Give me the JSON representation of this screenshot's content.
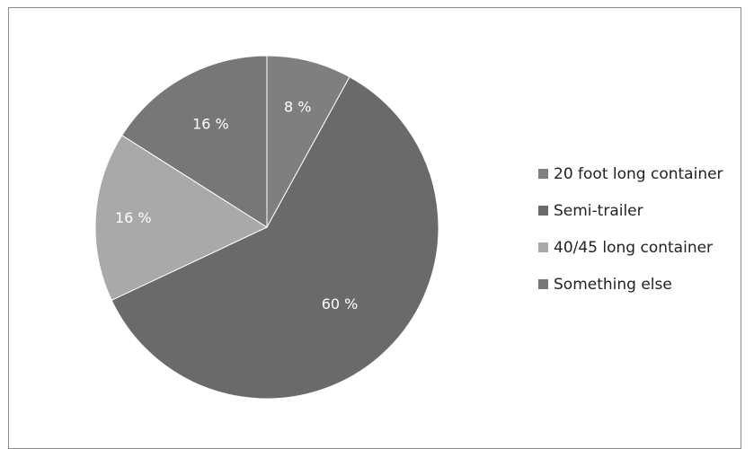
{
  "chart_data": {
    "type": "pie",
    "categories": [
      "20 foot long container",
      "Semi-trailer",
      "40/45 long container",
      "Something else"
    ],
    "values": [
      8,
      60,
      16,
      16
    ],
    "value_labels": [
      "8 %",
      "60 %",
      "16 %",
      "16 %"
    ],
    "colors": [
      "#7f7f7f",
      "#6a6a6a",
      "#a9a9a9",
      "#777777"
    ],
    "legend": "right",
    "start_angle_deg": 0,
    "direction": "clockwise"
  }
}
